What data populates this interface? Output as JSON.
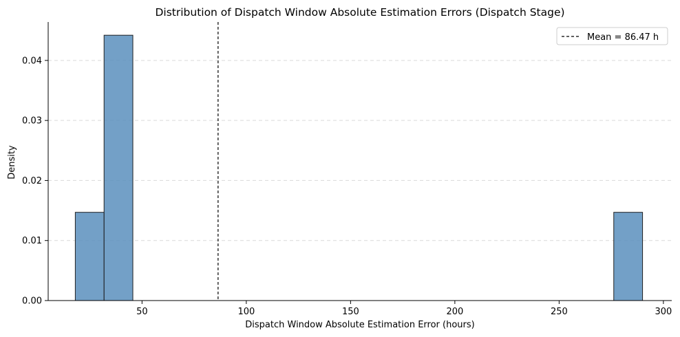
{
  "chart_data": {
    "type": "bar",
    "title": "Distribution of Dispatch Window Absolute Estimation Errors (Dispatch Stage)",
    "xlabel": "Dispatch Window Absolute Estimation Error (hours)",
    "ylabel": "Density",
    "xlim": [
      5.0,
      304.0
    ],
    "ylim": [
      0,
      0.0464
    ],
    "xticks": [
      50,
      100,
      150,
      200,
      250,
      300
    ],
    "yticks": [
      0.0,
      0.01,
      0.02,
      0.03,
      0.04
    ],
    "xtick_labels": [
      "50",
      "100",
      "150",
      "200",
      "250",
      "300"
    ],
    "ytick_labels": [
      "0.00",
      "0.01",
      "0.02",
      "0.03",
      "0.04"
    ],
    "bins": [
      {
        "x0": 18.0,
        "x1": 31.8,
        "density": 0.0147
      },
      {
        "x0": 31.8,
        "x1": 45.6,
        "density": 0.0442
      },
      {
        "x0": 276.2,
        "x1": 290.0,
        "density": 0.0147
      }
    ],
    "mean_line": {
      "value": 86.47,
      "label": "Mean = 86.47 h"
    },
    "grid": {
      "y": true,
      "x": false
    },
    "legend_position": "top-right",
    "colors": {
      "bar_fill": "#5b8fbd",
      "bar_edge": "#1f1f1f",
      "mean_line": "#000000",
      "grid": "#d9d9d9"
    }
  }
}
